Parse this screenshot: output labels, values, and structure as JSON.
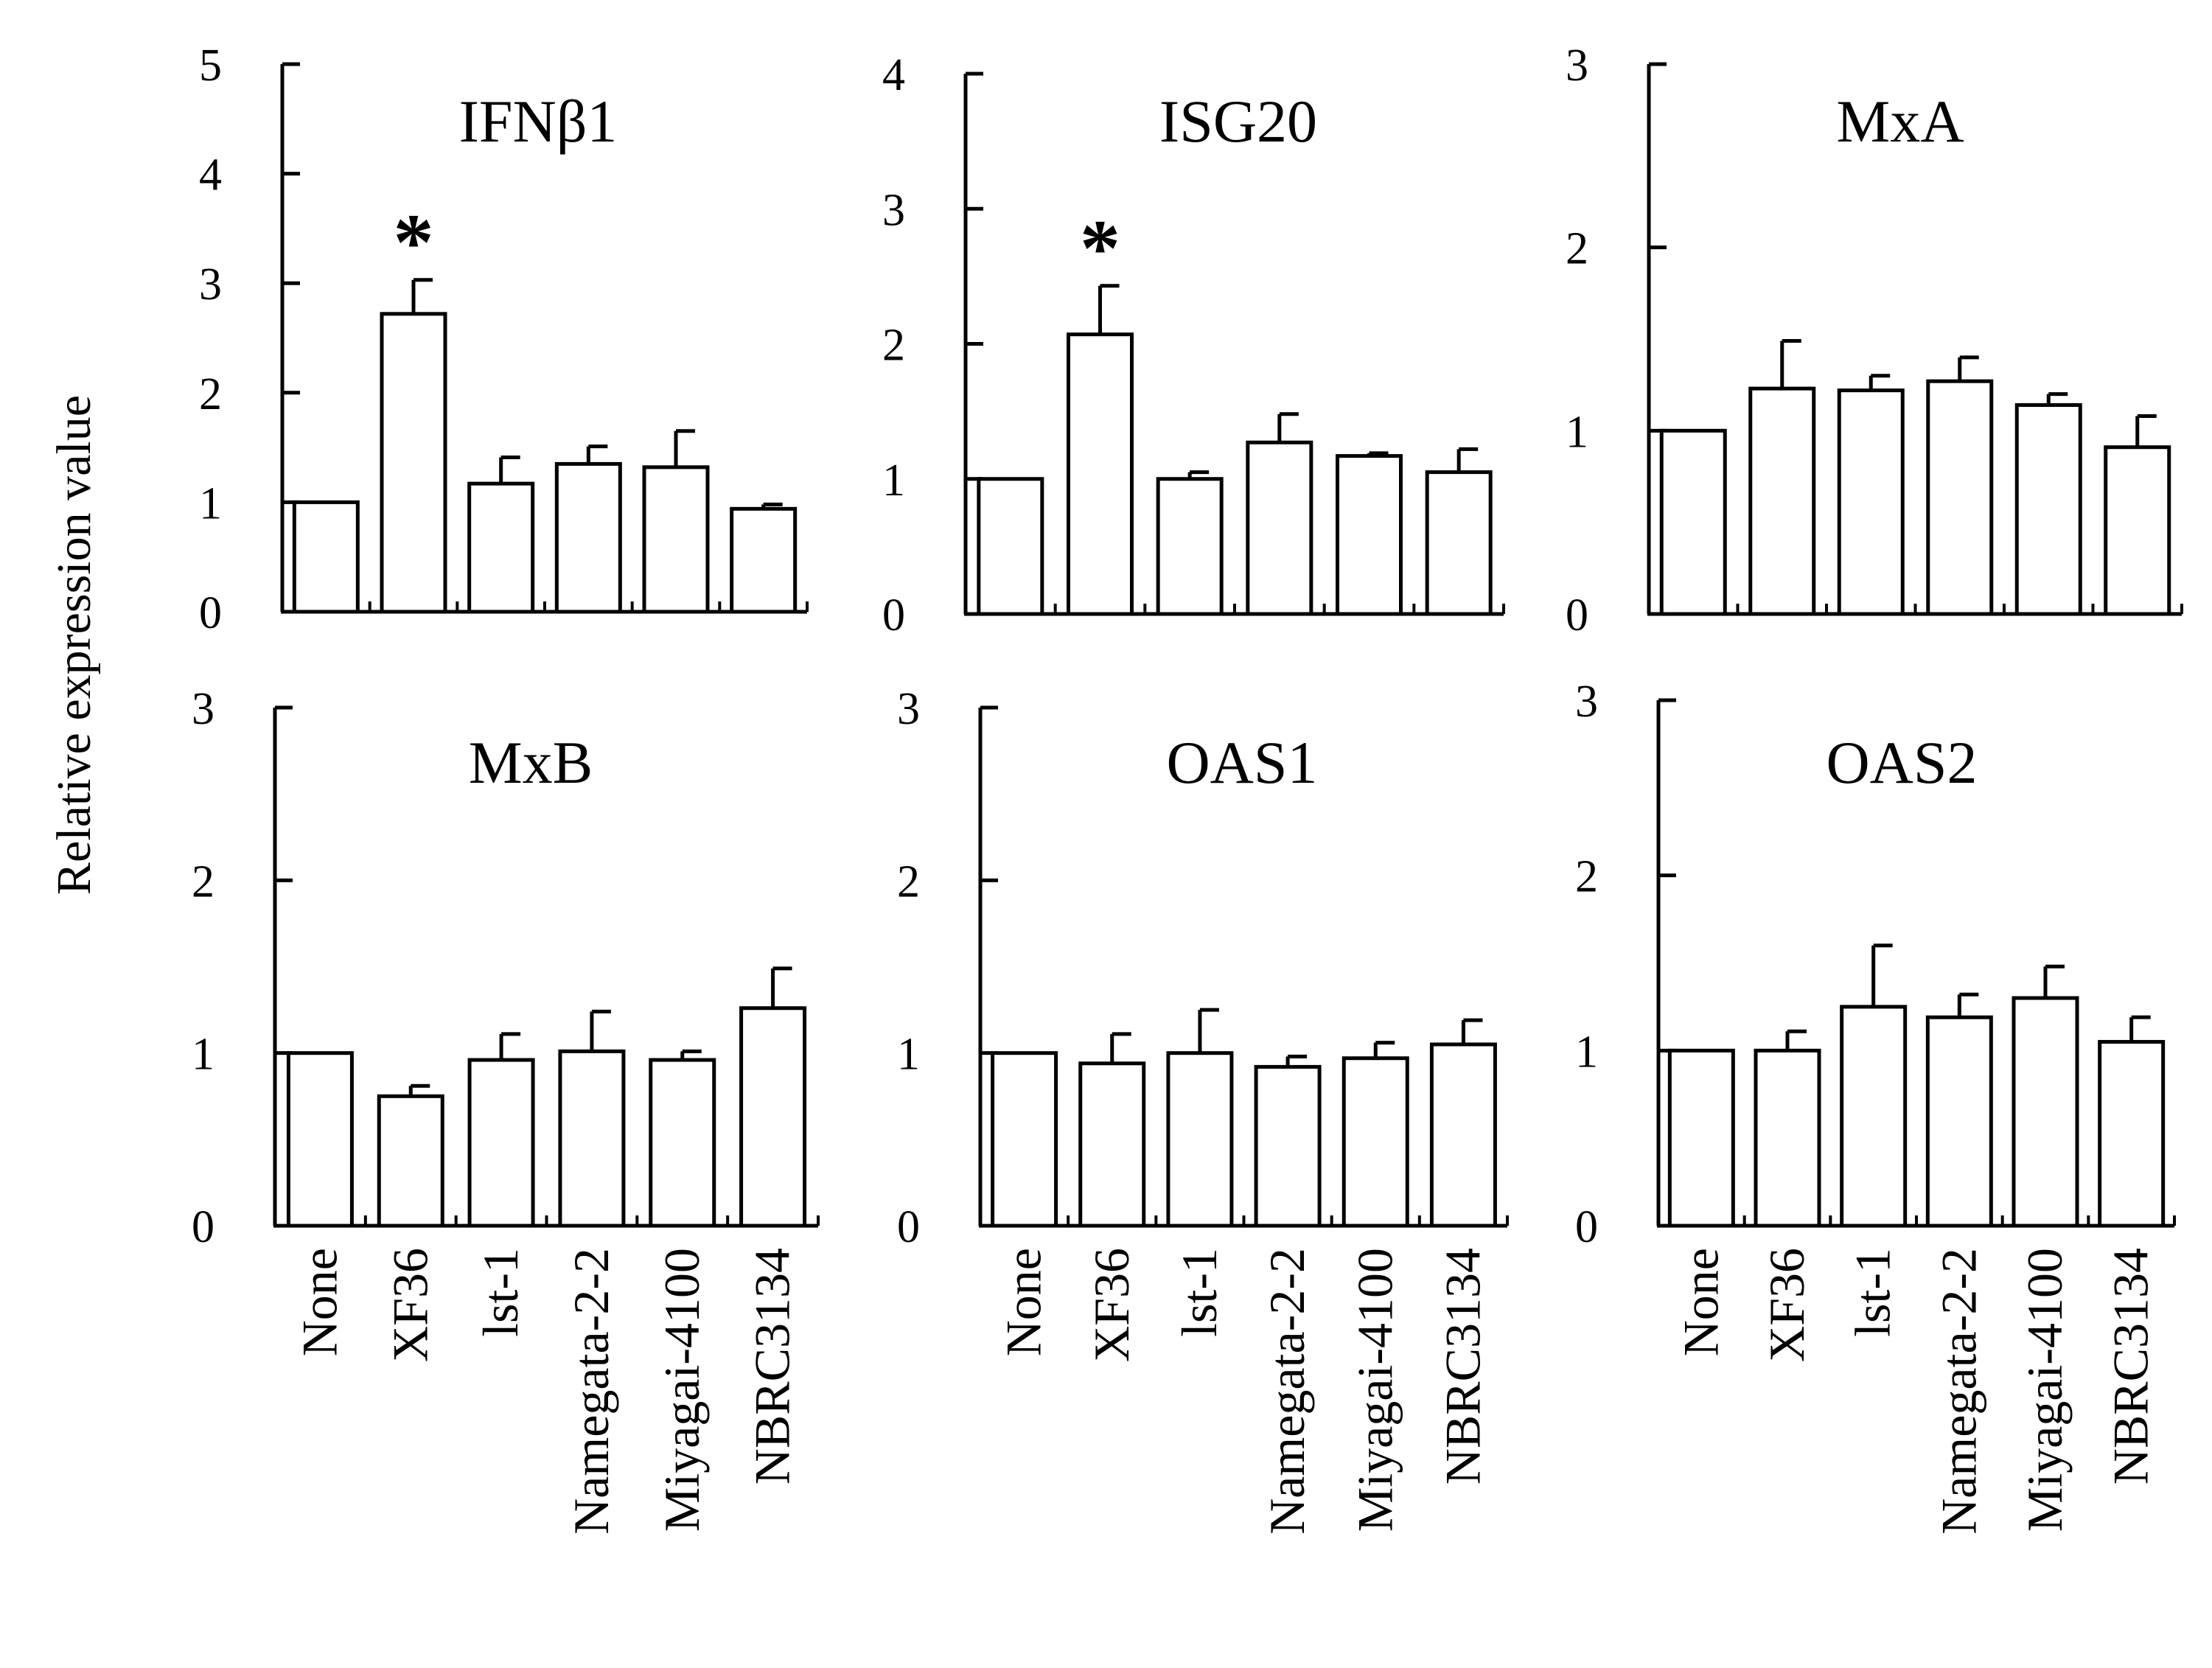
{
  "chart_data": {
    "type": "bar",
    "shared_ylabel": "Relative expression value",
    "categories": [
      "None",
      "XF36",
      "lst-1",
      "Namegata-2-2",
      "Miyagai-4100",
      "NBRC3134"
    ],
    "panels": [
      {
        "title": "IFNβ1",
        "ylim": [
          0,
          5
        ],
        "yticks": [
          "0",
          "1",
          "2",
          "3",
          "4",
          "5"
        ],
        "values": [
          1.0,
          2.72,
          1.17,
          1.35,
          1.32,
          0.94
        ],
        "errors": [
          0.0,
          0.31,
          0.24,
          0.16,
          0.33,
          0.04
        ],
        "annotations": [
          "",
          "*",
          "",
          "",
          "",
          ""
        ],
        "show_category_labels": false
      },
      {
        "title": "ISG20",
        "ylim": [
          0,
          4
        ],
        "yticks": [
          "0",
          "1",
          "2",
          "3",
          "4"
        ],
        "values": [
          1.0,
          2.07,
          1.0,
          1.27,
          1.17,
          1.05
        ],
        "errors": [
          0.0,
          0.36,
          0.05,
          0.21,
          0.02,
          0.17
        ],
        "annotations": [
          "",
          "*",
          "",
          "",
          "",
          ""
        ],
        "show_category_labels": false
      },
      {
        "title": "MxA",
        "ylim": [
          0,
          3
        ],
        "yticks": [
          "0",
          "1",
          "2",
          "3"
        ],
        "values": [
          1.0,
          1.23,
          1.22,
          1.27,
          1.14,
          0.91
        ],
        "errors": [
          0.0,
          0.26,
          0.08,
          0.13,
          0.06,
          0.17
        ],
        "annotations": [
          "",
          "",
          "",
          "",
          "",
          ""
        ],
        "show_category_labels": false
      },
      {
        "title": "MxB",
        "ylim": [
          0,
          3
        ],
        "yticks": [
          "0",
          "1",
          "2",
          "3"
        ],
        "values": [
          1.0,
          0.75,
          0.96,
          1.01,
          0.96,
          1.26
        ],
        "errors": [
          0.0,
          0.06,
          0.15,
          0.23,
          0.05,
          0.23
        ],
        "annotations": [
          "",
          "",
          "",
          "",
          "",
          ""
        ],
        "show_category_labels": true
      },
      {
        "title": "OAS1",
        "ylim": [
          0,
          3
        ],
        "yticks": [
          "0",
          "1",
          "2",
          "3"
        ],
        "values": [
          1.0,
          0.94,
          1.0,
          0.92,
          0.97,
          1.05
        ],
        "errors": [
          0.0,
          0.17,
          0.25,
          0.06,
          0.09,
          0.14
        ],
        "annotations": [
          "",
          "",
          "",
          "",
          "",
          ""
        ],
        "show_category_labels": true
      },
      {
        "title": "OAS2",
        "ylim": [
          0,
          3
        ],
        "yticks": [
          "0",
          "1",
          "2",
          "3"
        ],
        "values": [
          1.0,
          1.0,
          1.25,
          1.19,
          1.3,
          1.05
        ],
        "errors": [
          0.0,
          0.11,
          0.35,
          0.13,
          0.18,
          0.14
        ],
        "annotations": [
          "",
          "",
          "",
          "",
          "",
          ""
        ],
        "show_category_labels": true
      }
    ]
  }
}
